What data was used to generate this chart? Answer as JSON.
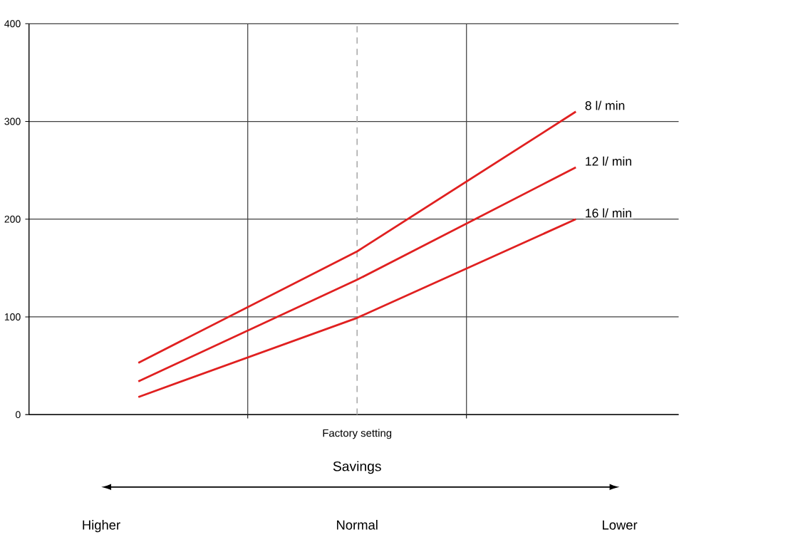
{
  "chart_data": {
    "type": "line",
    "categories": [
      null,
      null,
      null
    ],
    "series": [
      {
        "name": "8 l/ min",
        "color": "#e02020",
        "values": [
          53,
          167,
          310
        ]
      },
      {
        "name": "12 l/ min",
        "color": "#e02020",
        "values": [
          34,
          138,
          253
        ]
      },
      {
        "name": "16 l/ min",
        "color": "#e02020",
        "values": [
          18,
          99,
          200
        ]
      }
    ],
    "ylim": [
      0,
      400
    ],
    "yticks": [
      0,
      100,
      200,
      300,
      400
    ],
    "grid": true,
    "marker": "none",
    "line_style": "solid",
    "annotations": [
      "Factory setting",
      "Savings",
      "Higher",
      "Normal",
      "Lower"
    ]
  }
}
